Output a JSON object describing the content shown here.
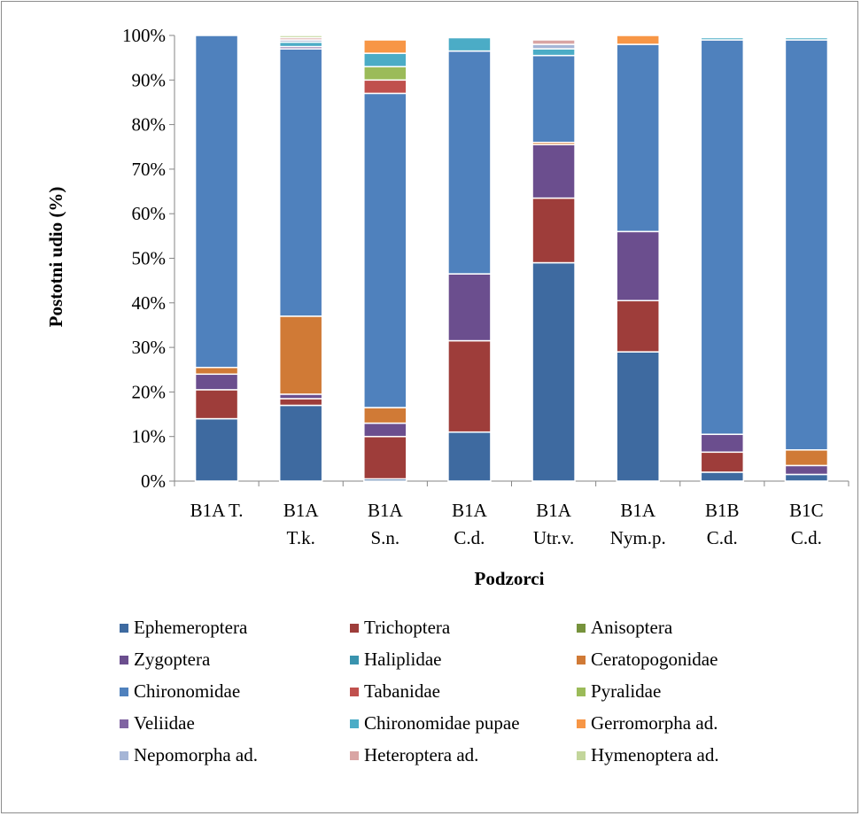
{
  "chart_data": {
    "type": "bar",
    "stacked": true,
    "percent_stacked": true,
    "xlabel": "Podzorci",
    "ylabel": "Postotni udio (%)",
    "ylim": [
      0,
      100
    ],
    "y_ticks": [
      "0%",
      "10%",
      "20%",
      "30%",
      "40%",
      "50%",
      "60%",
      "70%",
      "80%",
      "90%",
      "100%"
    ],
    "grid": false,
    "legend_position": "bottom",
    "categories": [
      [
        "B1A T."
      ],
      [
        "B1A",
        "T.k."
      ],
      [
        "B1A",
        "S.n."
      ],
      [
        "B1A",
        "C.d."
      ],
      [
        "B1A",
        "Utr.v."
      ],
      [
        "B1A",
        "Nym.p."
      ],
      [
        "B1B",
        "C.d."
      ],
      [
        "B1C",
        "C.d."
      ]
    ],
    "series": [
      {
        "name": "Ephemeroptera",
        "color": "#3E6AA0",
        "values": [
          14.0,
          17.0,
          0.5,
          11.0,
          49.0,
          29.0,
          2.0,
          1.5
        ]
      },
      {
        "name": "Trichoptera",
        "color": "#9E3D3A",
        "values": [
          6.5,
          1.5,
          9.5,
          20.5,
          14.5,
          11.5,
          4.5,
          0.0
        ]
      },
      {
        "name": "Anisoptera",
        "color": "#76923C",
        "values": [
          0.0,
          0.0,
          0.0,
          0.0,
          0.0,
          0.0,
          0.0,
          0.0
        ]
      },
      {
        "name": "Zygoptera",
        "color": "#6B4E8E",
        "values": [
          3.5,
          1.0,
          3.0,
          15.0,
          12.0,
          15.5,
          4.0,
          2.0
        ]
      },
      {
        "name": "Haliplidae",
        "color": "#3993AE",
        "values": [
          0.0,
          0.0,
          0.0,
          0.0,
          0.0,
          0.0,
          0.0,
          0.0
        ]
      },
      {
        "name": "Ceratopogonidae",
        "color": "#D07A36",
        "values": [
          1.5,
          17.5,
          3.5,
          0.0,
          0.5,
          0.0,
          0.0,
          3.5
        ]
      },
      {
        "name": "Chironomidae",
        "color": "#4F81BD",
        "values": [
          74.5,
          60.0,
          70.5,
          50.0,
          19.5,
          42.0,
          88.5,
          92.0
        ]
      },
      {
        "name": "Tabanidae",
        "color": "#C0504D",
        "values": [
          0.0,
          0.0,
          3.0,
          0.0,
          0.0,
          0.0,
          0.0,
          0.0
        ]
      },
      {
        "name": "Pyralidae",
        "color": "#9BBB59",
        "values": [
          0.0,
          0.0,
          3.0,
          0.0,
          0.0,
          0.0,
          0.0,
          0.0
        ]
      },
      {
        "name": "Veliidae",
        "color": "#8064A2",
        "values": [
          0.0,
          0.5,
          0.0,
          0.0,
          0.0,
          0.0,
          0.0,
          0.0
        ]
      },
      {
        "name": "Chironomidae pupae",
        "color": "#4BACC6",
        "values": [
          0.0,
          1.0,
          3.0,
          3.0,
          1.5,
          0.0,
          0.5,
          0.5
        ]
      },
      {
        "name": "Gerromorpha ad.",
        "color": "#F79646",
        "values": [
          0.0,
          0.0,
          3.0,
          0.0,
          0.0,
          2.0,
          0.0,
          0.0
        ]
      },
      {
        "name": "Nepomorpha ad.",
        "color": "#A5B5D6",
        "values": [
          0.0,
          0.5,
          0.0,
          0.0,
          1.0,
          0.0,
          0.0,
          0.0
        ]
      },
      {
        "name": "Heteroptera ad.",
        "color": "#D9A5A4",
        "values": [
          0.0,
          0.5,
          0.0,
          0.0,
          1.0,
          0.0,
          0.0,
          0.0
        ]
      },
      {
        "name": "Hymenoptera ad.",
        "color": "#C3D69B",
        "values": [
          0.0,
          0.5,
          0.0,
          0.0,
          0.0,
          0.0,
          0.0,
          0.0
        ]
      }
    ]
  }
}
